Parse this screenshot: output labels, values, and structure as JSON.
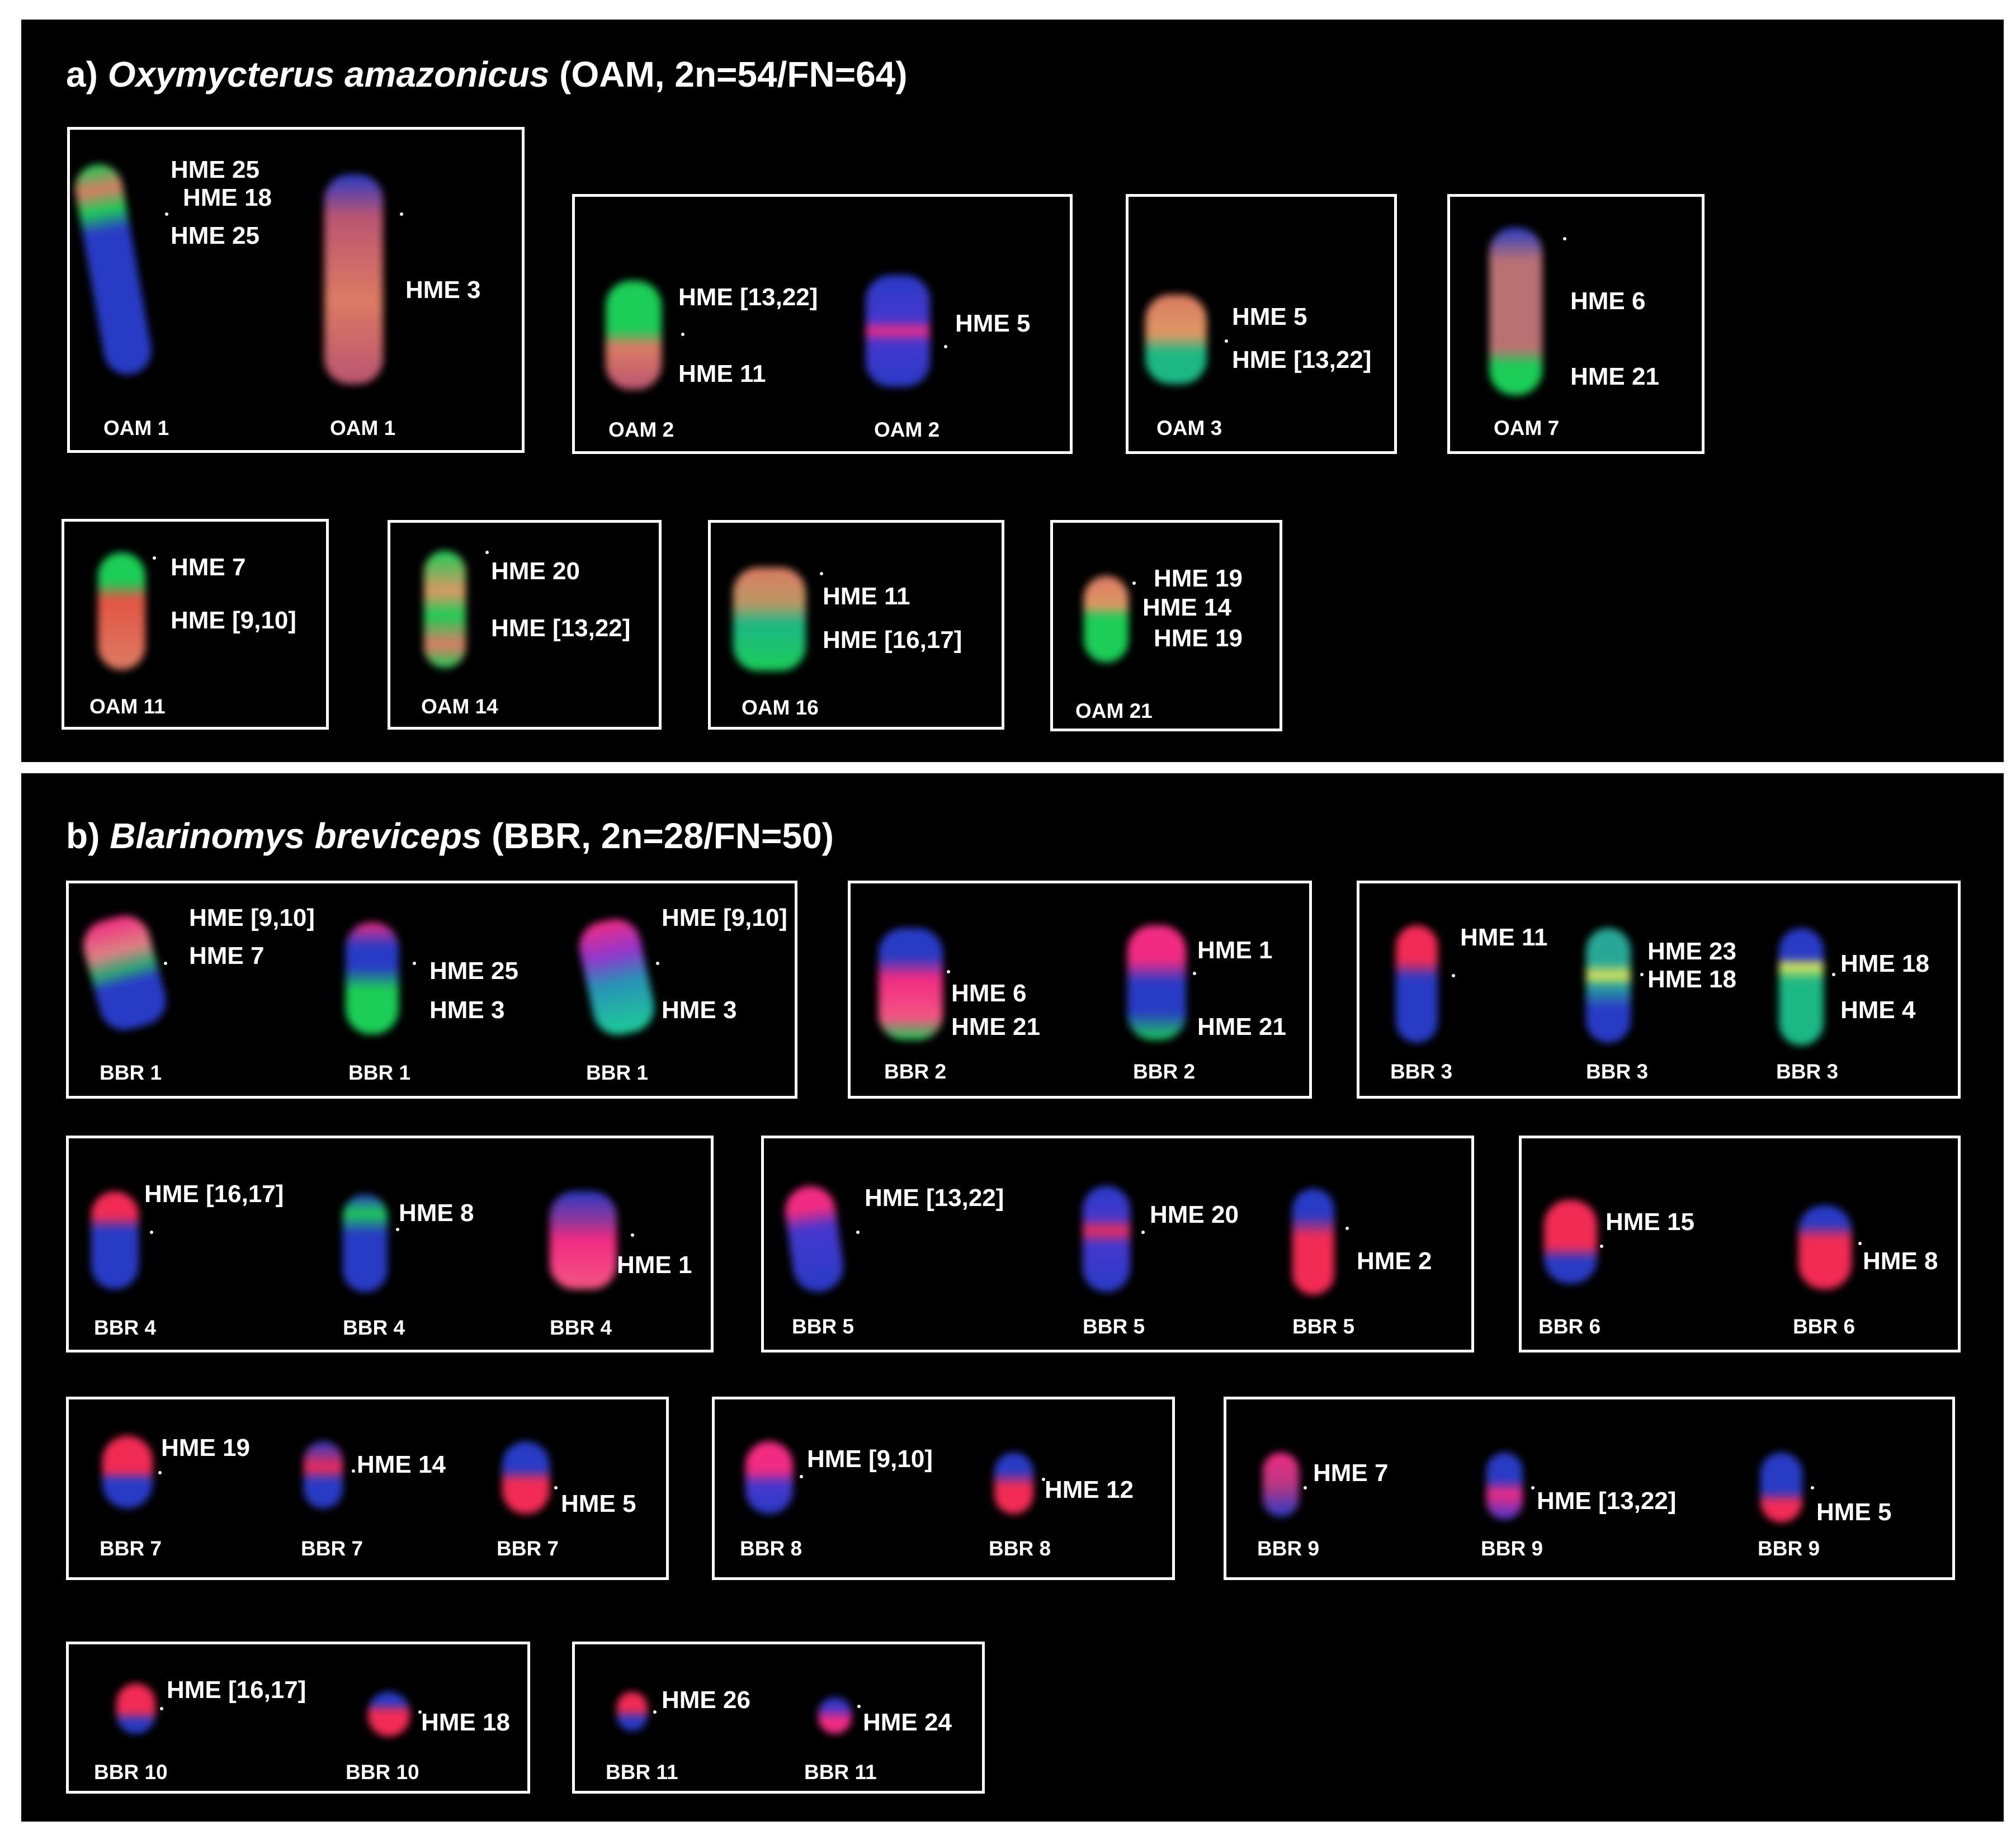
{
  "figure": {
    "panel_a": {
      "title_prefix": "a)",
      "title_species": "Oxymycterus amazonicus",
      "title_suffix": "(OAM, 2n=54/FN=64)"
    },
    "panel_b": {
      "title_prefix": "b)",
      "title_species": "Blarinomys breviceps",
      "title_suffix": "(BBR, 2n=28/FN=50)"
    }
  },
  "labels": {
    "a1": {
      "l1": "HME 25",
      "l2": "HME 18",
      "l3": "HME 25",
      "l4": "HME 3",
      "c1": "OAM 1",
      "c2": "OAM 1"
    },
    "a2": {
      "l1": "HME [13,22]",
      "l2": "HME 11",
      "l3": "HME 5",
      "c1": "OAM 2",
      "c2": "OAM 2"
    },
    "a3": {
      "l1": "HME 5",
      "l2": "HME [13,22]",
      "c1": "OAM 3"
    },
    "a4": {
      "l1": "HME 6",
      "l2": "HME 21",
      "c1": "OAM 7"
    },
    "a5": {
      "l1": "HME 7",
      "l2": "HME [9,10]",
      "c1": "OAM 11"
    },
    "a6": {
      "l1": "HME 20",
      "l2": "HME [13,22]",
      "c1": "OAM 14"
    },
    "a7": {
      "l1": "HME 11",
      "l2": "HME [16,17]",
      "c1": "OAM 16"
    },
    "a8": {
      "l1": "HME 19",
      "l2": "HME 14",
      "l3": "HME 19",
      "c1": "OAM 21"
    },
    "b1": {
      "l1": "HME [9,10]",
      "l2": "HME 7",
      "l3": "HME 25",
      "l4": "HME 3",
      "l5": "HME [9,10]",
      "l6": "HME 3",
      "c1": "BBR 1",
      "c2": "BBR 1",
      "c3": "BBR 1"
    },
    "b2": {
      "l1": "HME 6",
      "l2": "HME 21",
      "l3": "HME 1",
      "l4": "HME 21",
      "c1": "BBR 2",
      "c2": "BBR 2"
    },
    "b3": {
      "l1": "HME 11",
      "l2": "HME 23",
      "l3": "HME 18",
      "l4": "HME 18",
      "l5": "HME 4",
      "c1": "BBR 3",
      "c2": "BBR 3",
      "c3": "BBR 3"
    },
    "b4": {
      "l1": "HME [16,17]",
      "l2": "HME 8",
      "l3": "HME 1",
      "c1": "BBR 4",
      "c2": "BBR 4",
      "c3": "BBR 4"
    },
    "b5": {
      "l1": "HME [13,22]",
      "l2": "HME 20",
      "l3": "HME 2",
      "c1": "BBR 5",
      "c2": "BBR 5",
      "c3": "BBR 5"
    },
    "b6": {
      "l1": "HME 15",
      "l2": "HME 8",
      "c1": "BBR 6",
      "c2": "BBR 6"
    },
    "b7": {
      "l1": "HME 19",
      "l2": "HME 14",
      "l3": "HME 5",
      "c1": "BBR 7",
      "c2": "BBR 7",
      "c3": "BBR 7"
    },
    "b8": {
      "l1": "HME [9,10]",
      "l2": "HME 12",
      "c1": "BBR 8",
      "c2": "BBR 8"
    },
    "b9": {
      "l1": "HME 7",
      "l2": "HME [13,22]",
      "l3": "HME 5",
      "c1": "BBR 9",
      "c2": "BBR 9",
      "c3": "BBR 9"
    },
    "b10": {
      "l1": "HME [16,17]",
      "l2": "HME 18",
      "c1": "BBR 10",
      "c2": "BBR 10"
    },
    "b11": {
      "l1": "HME 26",
      "l2": "HME 24",
      "c1": "BBR 11",
      "c2": "BBR 11"
    }
  },
  "colors": {
    "background": "#000000",
    "frame": "#ffffff",
    "dapi_blue": "#2b3fd0",
    "probe_red": "#ff2e5a",
    "probe_green": "#1ed85c",
    "probe_orange": "#e8826a",
    "probe_yellow": "#f2f25a"
  }
}
